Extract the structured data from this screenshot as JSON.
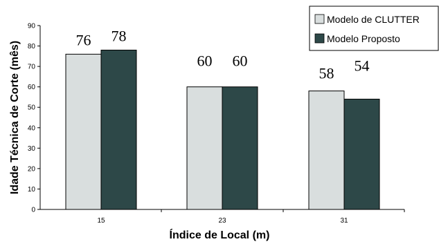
{
  "chart_data": {
    "type": "bar",
    "categories": [
      "15",
      "23",
      "31"
    ],
    "series": [
      {
        "name": "Modelo de CLUTTER",
        "values": [
          76,
          60,
          58
        ],
        "color": "#d9dede"
      },
      {
        "name": "Modelo Proposto",
        "values": [
          78,
          60,
          54
        ],
        "color": "#2d4848"
      }
    ],
    "xlabel": "Índice de Local (m)",
    "ylabel": "Idade Técnica de Corte (mês)",
    "ylim": [
      0,
      90
    ],
    "yticks": [
      0,
      10,
      20,
      30,
      40,
      50,
      60,
      70,
      80,
      90
    ],
    "grid": false,
    "legend_position": "top-right",
    "data_labels": [
      [
        "76",
        "78"
      ],
      [
        "60",
        "60"
      ],
      [
        "58",
        "54"
      ]
    ]
  }
}
